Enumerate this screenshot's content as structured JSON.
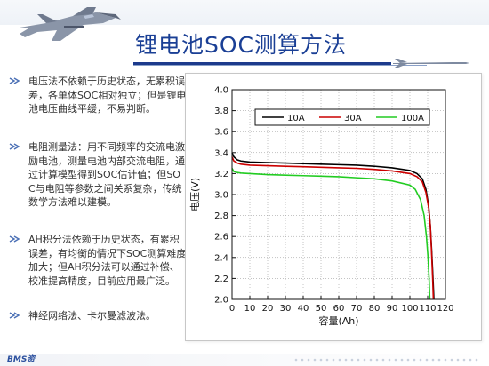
{
  "slide": {
    "title": "锂电池SOC测算方法",
    "logo_text": "BMS资",
    "bullets": [
      {
        "text": "电压法不依赖于历史状态，无累积误差，各单体SOC相对独立；但是锂电池电压曲线平缓，不易判断。"
      },
      {
        "text": "电阻测量法：用不同频率的交流电激励电池，测量电池内部交流电阻，通过计算模型得到SOC估计值；但SOC与电阻等参数之间关系复杂，传统数学方法难以建模。"
      },
      {
        "text": "AH积分法依赖于历史状态，有累积误差，有均衡的情况下SOC测算难度加大；但AH积分法可以通过补偿、校准提高精度，目前应用最广泛。"
      },
      {
        "text": "神经网络法、卡尔曼滤波法。"
      }
    ]
  },
  "chart_data": {
    "type": "line",
    "title": "",
    "xlabel": "容量(Ah)",
    "ylabel": "电压(V)",
    "xlim": [
      0,
      120
    ],
    "ylim": [
      2.0,
      4.0
    ],
    "x_ticks": [
      0,
      10,
      20,
      30,
      40,
      50,
      60,
      70,
      80,
      90,
      100,
      110,
      120
    ],
    "y_ticks": [
      2.0,
      2.2,
      2.4,
      2.6,
      2.8,
      3.0,
      3.2,
      3.4,
      3.6,
      3.8,
      4.0
    ],
    "grid": true,
    "legend_position": "top",
    "series": [
      {
        "name": "10A",
        "color": "#000000",
        "points": [
          [
            0,
            3.4
          ],
          [
            1,
            3.36
          ],
          [
            3,
            3.33
          ],
          [
            5,
            3.32
          ],
          [
            10,
            3.31
          ],
          [
            20,
            3.305
          ],
          [
            30,
            3.3
          ],
          [
            40,
            3.295
          ],
          [
            50,
            3.29
          ],
          [
            60,
            3.285
          ],
          [
            70,
            3.28
          ],
          [
            80,
            3.27
          ],
          [
            90,
            3.255
          ],
          [
            100,
            3.23
          ],
          [
            104,
            3.2
          ],
          [
            107,
            3.15
          ],
          [
            109,
            3.05
          ],
          [
            110.5,
            2.9
          ],
          [
            111.5,
            2.7
          ],
          [
            112.3,
            2.45
          ],
          [
            113,
            2.2
          ],
          [
            113.5,
            2.0
          ]
        ]
      },
      {
        "name": "30A",
        "color": "#cc0000",
        "points": [
          [
            0,
            3.36
          ],
          [
            1,
            3.32
          ],
          [
            3,
            3.3
          ],
          [
            5,
            3.29
          ],
          [
            10,
            3.28
          ],
          [
            20,
            3.275
          ],
          [
            30,
            3.27
          ],
          [
            40,
            3.265
          ],
          [
            50,
            3.26
          ],
          [
            60,
            3.255
          ],
          [
            70,
            3.25
          ],
          [
            80,
            3.24
          ],
          [
            90,
            3.225
          ],
          [
            100,
            3.2
          ],
          [
            104,
            3.17
          ],
          [
            107,
            3.12
          ],
          [
            109,
            3.02
          ],
          [
            110.5,
            2.88
          ],
          [
            111.5,
            2.7
          ],
          [
            112.2,
            2.45
          ],
          [
            112.8,
            2.2
          ],
          [
            113.2,
            2.0
          ]
        ]
      },
      {
        "name": "100A",
        "color": "#22cc22",
        "points": [
          [
            0,
            3.25
          ],
          [
            1,
            3.22
          ],
          [
            3,
            3.21
          ],
          [
            5,
            3.205
          ],
          [
            10,
            3.2
          ],
          [
            20,
            3.19
          ],
          [
            30,
            3.185
          ],
          [
            40,
            3.18
          ],
          [
            50,
            3.175
          ],
          [
            60,
            3.17
          ],
          [
            70,
            3.16
          ],
          [
            80,
            3.15
          ],
          [
            90,
            3.13
          ],
          [
            100,
            3.09
          ],
          [
            103,
            3.05
          ],
          [
            106,
            2.95
          ],
          [
            108,
            2.8
          ],
          [
            109.3,
            2.6
          ],
          [
            110.2,
            2.4
          ],
          [
            110.8,
            2.2
          ],
          [
            111.2,
            2.0
          ]
        ]
      }
    ]
  },
  "colors": {
    "title": "#1a3f95",
    "rule": "#1c3a8c",
    "bullet_mark": "#4a6fb5",
    "text": "#333333"
  },
  "icons": {
    "header": "fighter-jet-icon",
    "rule_end": "missile-icon",
    "bullet": "bullet-arrow-icon"
  }
}
